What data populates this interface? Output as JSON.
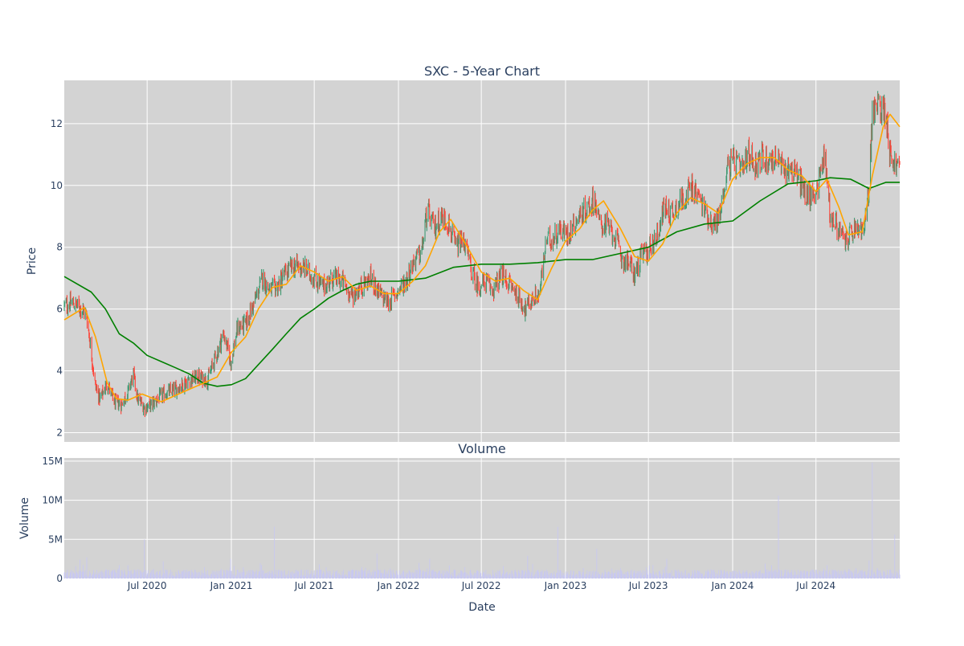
{
  "chart_data": [
    {
      "type": "candlestick",
      "title": "SXC - 5-Year Chart",
      "xlabel": "",
      "ylabel": "Price",
      "xlim": [
        "2020-01-02",
        "2024-12-31"
      ],
      "ylim": [
        1.7,
        13.4
      ],
      "yticks": [
        2,
        4,
        6,
        8,
        10,
        12
      ],
      "grid": true,
      "legend": "none",
      "colors": {
        "plot_bg": "#d3d3d3",
        "increasing": "#3d9970",
        "decreasing": "#ff4136",
        "ma_short": "#ffa500",
        "ma_long": "#008000"
      },
      "close_path": [
        [
          "2020-01-02",
          6.1
        ],
        [
          "2020-01-20",
          6.2
        ],
        [
          "2020-02-10",
          6.0
        ],
        [
          "2020-02-20",
          5.8
        ],
        [
          "2020-03-01",
          4.6
        ],
        [
          "2020-03-10",
          3.5
        ],
        [
          "2020-03-20",
          3.1
        ],
        [
          "2020-04-05",
          3.6
        ],
        [
          "2020-04-20",
          3.0
        ],
        [
          "2020-05-05",
          2.9
        ],
        [
          "2020-05-20",
          3.3
        ],
        [
          "2020-06-01",
          3.9
        ],
        [
          "2020-06-10",
          3.1
        ],
        [
          "2020-06-25",
          2.8
        ],
        [
          "2020-07-10",
          2.9
        ],
        [
          "2020-08-01",
          3.2
        ],
        [
          "2020-09-01",
          3.4
        ],
        [
          "2020-10-01",
          3.7
        ],
        [
          "2020-10-20",
          3.8
        ],
        [
          "2020-11-10",
          3.7
        ],
        [
          "2020-12-01",
          4.6
        ],
        [
          "2020-12-15",
          5.2
        ],
        [
          "2020-12-31",
          4.3
        ],
        [
          "2021-01-15",
          5.4
        ],
        [
          "2021-02-01",
          5.5
        ],
        [
          "2021-02-20",
          6.2
        ],
        [
          "2021-03-10",
          7.0
        ],
        [
          "2021-03-25",
          6.6
        ],
        [
          "2021-04-10",
          6.7
        ],
        [
          "2021-05-01",
          7.2
        ],
        [
          "2021-05-20",
          7.4
        ],
        [
          "2021-06-10",
          7.3
        ],
        [
          "2021-07-01",
          7.0
        ],
        [
          "2021-07-20",
          6.7
        ],
        [
          "2021-08-10",
          7.0
        ],
        [
          "2021-09-01",
          6.9
        ],
        [
          "2021-09-20",
          6.4
        ],
        [
          "2021-10-10",
          6.7
        ],
        [
          "2021-11-01",
          7.0
        ],
        [
          "2021-11-20",
          6.5
        ],
        [
          "2021-12-10",
          6.2
        ],
        [
          "2022-01-01",
          6.6
        ],
        [
          "2022-01-20",
          7.0
        ],
        [
          "2022-02-05",
          7.6
        ],
        [
          "2022-02-20",
          7.8
        ],
        [
          "2022-03-05",
          9.2
        ],
        [
          "2022-03-20",
          8.6
        ],
        [
          "2022-04-05",
          9.0
        ],
        [
          "2022-04-20",
          8.8
        ],
        [
          "2022-05-05",
          8.0
        ],
        [
          "2022-05-25",
          8.2
        ],
        [
          "2022-06-10",
          7.2
        ],
        [
          "2022-06-25",
          6.7
        ],
        [
          "2022-07-10",
          6.9
        ],
        [
          "2022-07-25",
          6.6
        ],
        [
          "2022-08-15",
          7.1
        ],
        [
          "2022-09-01",
          6.8
        ],
        [
          "2022-09-20",
          6.4
        ],
        [
          "2022-10-05",
          6.0
        ],
        [
          "2022-10-20",
          6.3
        ],
        [
          "2022-11-05",
          6.5
        ],
        [
          "2022-11-20",
          8.2
        ],
        [
          "2022-12-05",
          8.3
        ],
        [
          "2022-12-20",
          8.6
        ],
        [
          "2023-01-05",
          8.4
        ],
        [
          "2023-01-20",
          8.8
        ],
        [
          "2023-02-05",
          9.1
        ],
        [
          "2023-02-20",
          9.3
        ],
        [
          "2023-03-05",
          9.6
        ],
        [
          "2023-03-15",
          8.8
        ],
        [
          "2023-04-01",
          8.7
        ],
        [
          "2023-04-20",
          8.3
        ],
        [
          "2023-05-05",
          7.6
        ],
        [
          "2023-05-20",
          7.5
        ],
        [
          "2023-06-01",
          7.1
        ],
        [
          "2023-06-15",
          7.7
        ],
        [
          "2023-07-01",
          7.9
        ],
        [
          "2023-07-20",
          8.4
        ],
        [
          "2023-08-05",
          9.3
        ],
        [
          "2023-08-20",
          9.1
        ],
        [
          "2023-09-05",
          9.4
        ],
        [
          "2023-09-20",
          9.7
        ],
        [
          "2023-10-05",
          9.9
        ],
        [
          "2023-10-20",
          9.6
        ],
        [
          "2023-11-05",
          9.1
        ],
        [
          "2023-11-20",
          8.7
        ],
        [
          "2023-12-05",
          9.1
        ],
        [
          "2023-12-20",
          10.6
        ],
        [
          "2024-01-05",
          10.8
        ],
        [
          "2024-01-20",
          10.4
        ],
        [
          "2024-02-05",
          11.0
        ],
        [
          "2024-02-20",
          10.7
        ],
        [
          "2024-03-05",
          10.9
        ],
        [
          "2024-03-20",
          10.8
        ],
        [
          "2024-04-05",
          10.9
        ],
        [
          "2024-04-20",
          10.5
        ],
        [
          "2024-05-05",
          10.6
        ],
        [
          "2024-05-20",
          10.4
        ],
        [
          "2024-06-05",
          9.8
        ],
        [
          "2024-06-20",
          9.6
        ],
        [
          "2024-07-05",
          10.0
        ],
        [
          "2024-07-20",
          11.1
        ],
        [
          "2024-08-01",
          9.0
        ],
        [
          "2024-08-15",
          8.7
        ],
        [
          "2024-09-01",
          8.2
        ],
        [
          "2024-09-15",
          8.4
        ],
        [
          "2024-10-01",
          8.6
        ],
        [
          "2024-10-15",
          8.5
        ],
        [
          "2024-10-25",
          10.0
        ],
        [
          "2024-11-01",
          12.3
        ],
        [
          "2024-11-15",
          12.6
        ],
        [
          "2024-12-01",
          12.4
        ],
        [
          "2024-12-10",
          11.0
        ],
        [
          "2024-12-20",
          10.7
        ],
        [
          "2024-12-31",
          10.6
        ]
      ],
      "ma_short": [
        [
          "2020-01-02",
          5.65
        ],
        [
          "2020-02-15",
          6.05
        ],
        [
          "2020-03-10",
          5.1
        ],
        [
          "2020-04-05",
          3.6
        ],
        [
          "2020-04-25",
          3.1
        ],
        [
          "2020-05-20",
          3.05
        ],
        [
          "2020-06-20",
          3.25
        ],
        [
          "2020-08-01",
          3.0
        ],
        [
          "2020-09-15",
          3.3
        ],
        [
          "2020-11-01",
          3.6
        ],
        [
          "2020-12-01",
          3.8
        ],
        [
          "2021-01-01",
          4.6
        ],
        [
          "2021-02-01",
          5.1
        ],
        [
          "2021-03-01",
          6.0
        ],
        [
          "2021-04-01",
          6.7
        ],
        [
          "2021-05-01",
          6.8
        ],
        [
          "2021-06-01",
          7.4
        ],
        [
          "2021-07-01",
          7.2
        ],
        [
          "2021-08-01",
          6.9
        ],
        [
          "2021-09-01",
          7.05
        ],
        [
          "2021-10-01",
          6.6
        ],
        [
          "2021-11-01",
          6.75
        ],
        [
          "2021-12-01",
          6.5
        ],
        [
          "2022-01-01",
          6.5
        ],
        [
          "2022-02-01",
          6.9
        ],
        [
          "2022-03-01",
          7.4
        ],
        [
          "2022-04-01",
          8.5
        ],
        [
          "2022-04-25",
          8.9
        ],
        [
          "2022-06-01",
          8.0
        ],
        [
          "2022-07-01",
          7.2
        ],
        [
          "2022-08-01",
          6.9
        ],
        [
          "2022-09-01",
          7.0
        ],
        [
          "2022-10-01",
          6.6
        ],
        [
          "2022-11-01",
          6.3
        ],
        [
          "2022-12-01",
          7.3
        ],
        [
          "2023-01-01",
          8.2
        ],
        [
          "2023-02-01",
          8.6
        ],
        [
          "2023-03-01",
          9.2
        ],
        [
          "2023-03-25",
          9.5
        ],
        [
          "2023-05-01",
          8.6
        ],
        [
          "2023-06-01",
          7.7
        ],
        [
          "2023-07-01",
          7.55
        ],
        [
          "2023-08-01",
          8.1
        ],
        [
          "2023-09-01",
          9.1
        ],
        [
          "2023-10-01",
          9.6
        ],
        [
          "2023-11-01",
          9.4
        ],
        [
          "2023-12-01",
          9.1
        ],
        [
          "2024-01-01",
          10.2
        ],
        [
          "2024-02-01",
          10.7
        ],
        [
          "2024-03-01",
          10.9
        ],
        [
          "2024-04-01",
          10.9
        ],
        [
          "2024-05-01",
          10.5
        ],
        [
          "2024-06-01",
          10.3
        ],
        [
          "2024-07-01",
          9.8
        ],
        [
          "2024-07-25",
          10.2
        ],
        [
          "2024-08-20",
          9.3
        ],
        [
          "2024-09-10",
          8.4
        ],
        [
          "2024-10-10",
          8.5
        ],
        [
          "2024-11-01",
          10.3
        ],
        [
          "2024-11-25",
          11.9
        ],
        [
          "2024-12-10",
          12.3
        ],
        [
          "2024-12-31",
          11.9
        ]
      ],
      "ma_long": [
        [
          "2020-01-02",
          7.05
        ],
        [
          "2020-03-01",
          6.55
        ],
        [
          "2020-04-01",
          6.0
        ],
        [
          "2020-05-01",
          5.2
        ],
        [
          "2020-06-01",
          4.9
        ],
        [
          "2020-07-01",
          4.5
        ],
        [
          "2020-08-01",
          4.3
        ],
        [
          "2020-09-01",
          4.1
        ],
        [
          "2020-10-01",
          3.9
        ],
        [
          "2020-11-01",
          3.6
        ],
        [
          "2020-12-01",
          3.5
        ],
        [
          "2021-01-01",
          3.55
        ],
        [
          "2021-02-01",
          3.75
        ],
        [
          "2021-03-01",
          4.2
        ],
        [
          "2021-04-01",
          4.7
        ],
        [
          "2021-05-01",
          5.2
        ],
        [
          "2021-06-01",
          5.7
        ],
        [
          "2021-07-01",
          6.0
        ],
        [
          "2021-08-01",
          6.35
        ],
        [
          "2021-09-01",
          6.6
        ],
        [
          "2021-10-01",
          6.8
        ],
        [
          "2021-11-01",
          6.9
        ],
        [
          "2022-01-01",
          6.9
        ],
        [
          "2022-03-01",
          7.0
        ],
        [
          "2022-05-01",
          7.35
        ],
        [
          "2022-07-01",
          7.45
        ],
        [
          "2022-09-01",
          7.45
        ],
        [
          "2022-11-01",
          7.5
        ],
        [
          "2023-01-01",
          7.6
        ],
        [
          "2023-03-01",
          7.6
        ],
        [
          "2023-05-01",
          7.8
        ],
        [
          "2023-07-01",
          8.0
        ],
        [
          "2023-09-01",
          8.5
        ],
        [
          "2023-11-01",
          8.75
        ],
        [
          "2024-01-01",
          8.85
        ],
        [
          "2024-03-01",
          9.5
        ],
        [
          "2024-05-01",
          10.05
        ],
        [
          "2024-07-01",
          10.15
        ],
        [
          "2024-08-01",
          10.25
        ],
        [
          "2024-09-15",
          10.2
        ],
        [
          "2024-10-25",
          9.9
        ],
        [
          "2024-12-01",
          10.1
        ],
        [
          "2024-12-31",
          10.1
        ]
      ]
    },
    {
      "type": "bar",
      "title": "Volume",
      "xlabel": "Date",
      "ylabel": "Volume",
      "xlim": [
        "2020-01-02",
        "2024-12-31"
      ],
      "ylim": [
        0,
        15400000
      ],
      "yticks": [
        0,
        5000000,
        10000000,
        15000000
      ],
      "ytick_labels": [
        "0",
        "5M",
        "10M",
        "15M"
      ],
      "xticks": [
        "2020-07-01",
        "2021-01-01",
        "2021-07-01",
        "2022-01-01",
        "2022-07-01",
        "2023-01-01",
        "2023-07-01",
        "2024-01-01",
        "2024-07-01"
      ],
      "xtick_labels": [
        "Jul 2020",
        "Jan 2021",
        "Jul 2021",
        "Jan 2022",
        "Jul 2022",
        "Jan 2023",
        "Jul 2023",
        "Jan 2024",
        "Jul 2024"
      ],
      "grid": true,
      "colors": {
        "plot_bg": "#d3d3d3",
        "bar": "#c8c8f0"
      },
      "spikes": [
        [
          "2020-02-05",
          2400000
        ],
        [
          "2020-02-20",
          2700000
        ],
        [
          "2020-03-15",
          1800000
        ],
        [
          "2020-05-20",
          1700000
        ],
        [
          "2020-06-25",
          5000000
        ],
        [
          "2020-08-05",
          2200000
        ],
        [
          "2020-09-20",
          2500000
        ],
        [
          "2020-11-15",
          2400000
        ],
        [
          "2020-12-05",
          2600000
        ],
        [
          "2020-12-30",
          2500000
        ],
        [
          "2021-03-20",
          1900000
        ],
        [
          "2021-04-05",
          6600000
        ],
        [
          "2021-06-20",
          3800000
        ],
        [
          "2021-07-10",
          2300000
        ],
        [
          "2021-09-05",
          2000000
        ],
        [
          "2021-11-15",
          3200000
        ],
        [
          "2022-02-15",
          2000000
        ],
        [
          "2022-03-10",
          2500000
        ],
        [
          "2022-06-25",
          2900000
        ],
        [
          "2022-10-10",
          2900000
        ],
        [
          "2022-12-15",
          6600000
        ],
        [
          "2023-01-15",
          3600000
        ],
        [
          "2023-03-10",
          3800000
        ],
        [
          "2023-04-01",
          3500000
        ],
        [
          "2023-08-10",
          2500000
        ],
        [
          "2023-11-25",
          3000000
        ],
        [
          "2024-04-10",
          10600000
        ],
        [
          "2024-07-25",
          1700000
        ],
        [
          "2024-09-01",
          2000000
        ],
        [
          "2024-10-25",
          2300000
        ],
        [
          "2024-11-01",
          14800000
        ],
        [
          "2024-12-20",
          5600000
        ]
      ]
    }
  ]
}
